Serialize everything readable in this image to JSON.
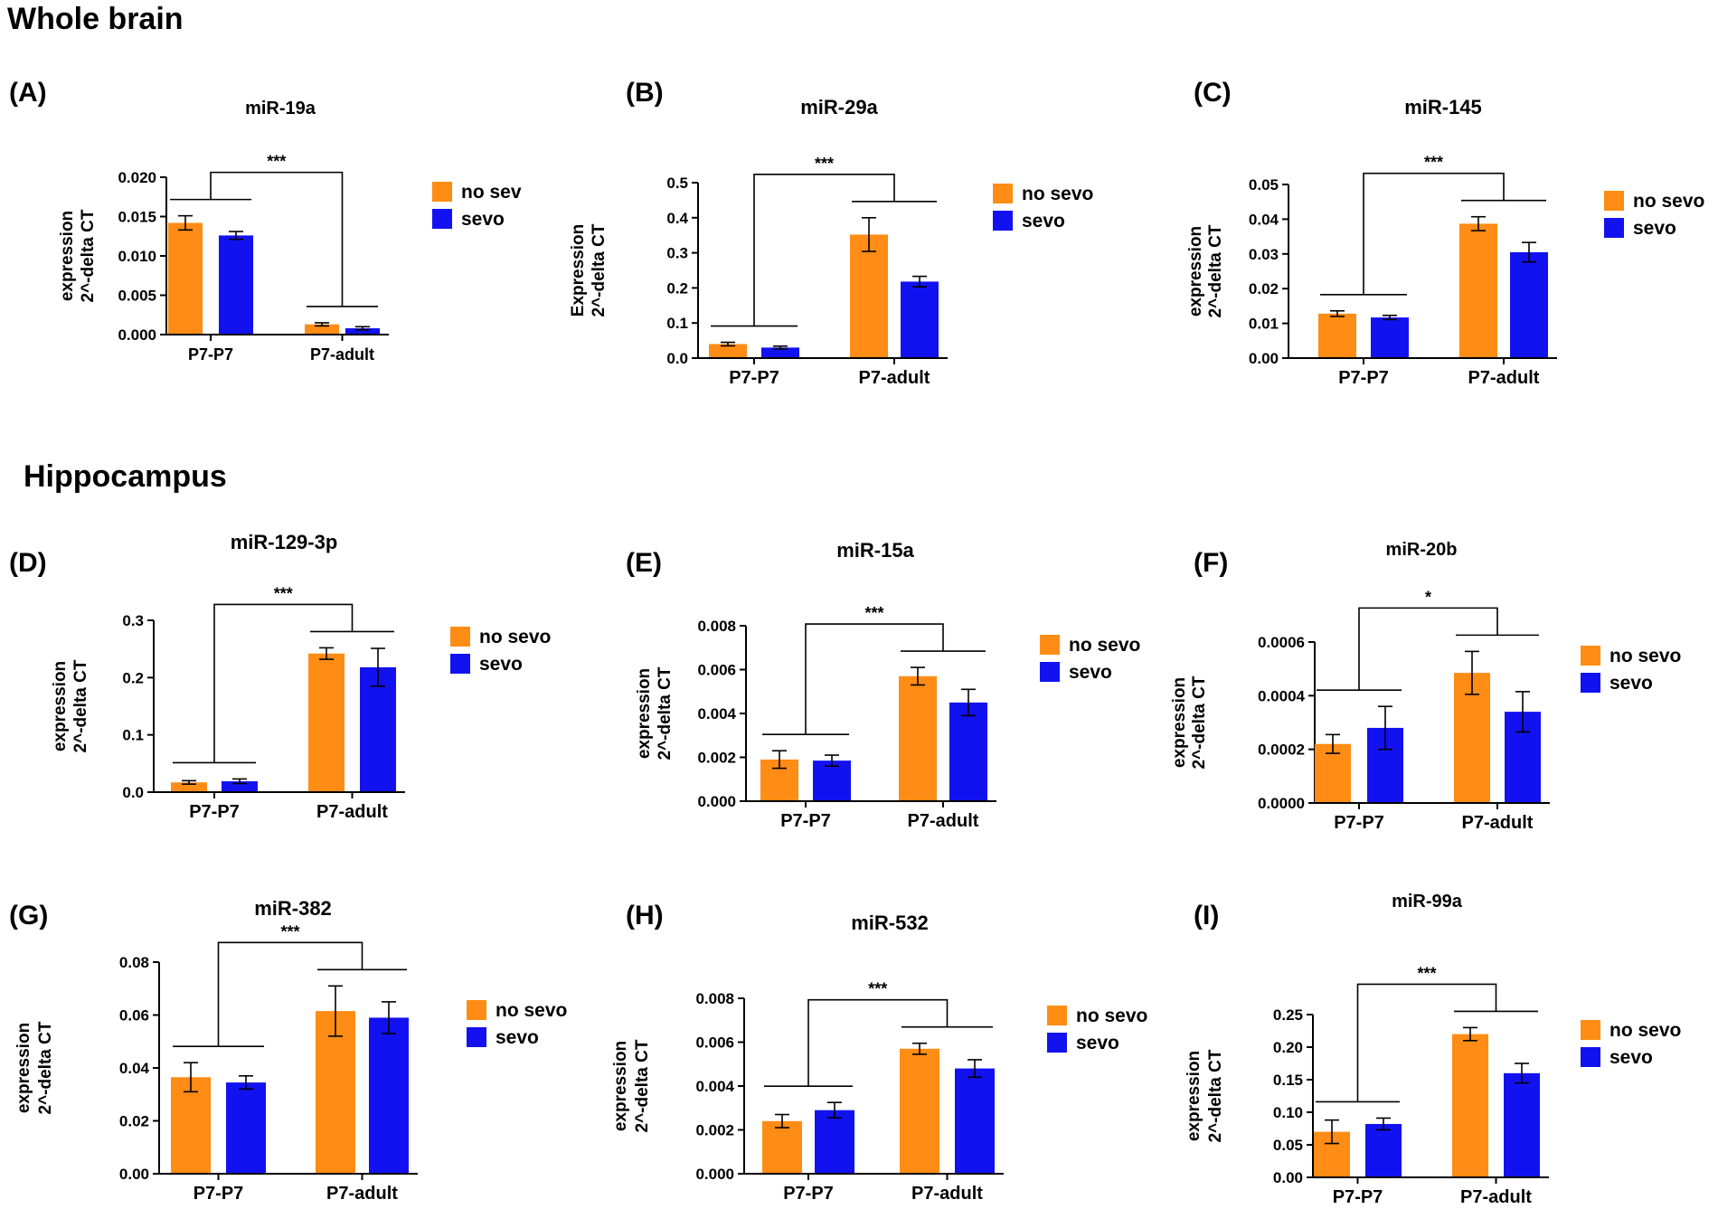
{
  "sections": {
    "whole_brain": "Whole brain",
    "hippocampus": "Hippocampus"
  },
  "colors": {
    "no_sevo": "#FF8C14",
    "sevo": "#1212F0",
    "axis": "#000000"
  },
  "chart_data": [
    {
      "panel": "(A)",
      "type": "bar",
      "title": "miR-19a",
      "ylabel": [
        "expression",
        "2^-delta CT"
      ],
      "categories": [
        "P7-P7",
        "P7-adult"
      ],
      "legend": [
        "no sev",
        "sevo"
      ],
      "series": [
        {
          "name": "no sev",
          "values": [
            0.0142,
            0.0013
          ],
          "errors": [
            0.0009,
            0.0002
          ]
        },
        {
          "name": "sevo",
          "values": [
            0.0126,
            0.0008
          ],
          "errors": [
            0.0005,
            0.0002
          ]
        }
      ],
      "ylim": [
        0,
        0.02
      ],
      "yticks": [
        "0.000",
        "0.005",
        "0.010",
        "0.015",
        "0.020"
      ],
      "significance": "***"
    },
    {
      "panel": "(B)",
      "type": "bar",
      "title": "miR-29a",
      "ylabel": [
        "Expression",
        "2^-delta CT"
      ],
      "categories": [
        "P7-P7",
        "P7-adult"
      ],
      "legend": [
        "no sevo",
        "sevo"
      ],
      "series": [
        {
          "name": "no sevo",
          "values": [
            0.04,
            0.352
          ],
          "errors": [
            0.005,
            0.048
          ]
        },
        {
          "name": "sevo",
          "values": [
            0.03,
            0.218
          ],
          "errors": [
            0.004,
            0.015
          ]
        }
      ],
      "ylim": [
        0,
        0.5
      ],
      "yticks": [
        "0.0",
        "0.1",
        "0.2",
        "0.3",
        "0.4",
        "0.5"
      ],
      "significance": "***"
    },
    {
      "panel": "(C)",
      "type": "bar",
      "title": "miR-145",
      "ylabel": [
        "expression",
        "2^-delta CT"
      ],
      "categories": [
        "P7-P7",
        "P7-adult"
      ],
      "legend": [
        "no sevo",
        "sevo"
      ],
      "series": [
        {
          "name": "no sevo",
          "values": [
            0.0128,
            0.0387
          ],
          "errors": [
            0.0008,
            0.002
          ]
        },
        {
          "name": "sevo",
          "values": [
            0.0117,
            0.0305
          ],
          "errors": [
            0.0006,
            0.0028
          ]
        }
      ],
      "ylim": [
        0,
        0.05
      ],
      "yticks": [
        "0.00",
        "0.01",
        "0.02",
        "0.03",
        "0.04",
        "0.05"
      ],
      "significance": "***"
    },
    {
      "panel": "(D)",
      "type": "bar",
      "title": "miR-129-3p",
      "ylabel": [
        "expression",
        "2^-delta CT"
      ],
      "categories": [
        "P7-P7",
        "P7-adult"
      ],
      "legend": [
        "no sevo",
        "sevo"
      ],
      "series": [
        {
          "name": "no sevo",
          "values": [
            0.017,
            0.242
          ],
          "errors": [
            0.003,
            0.01
          ]
        },
        {
          "name": "sevo",
          "values": [
            0.019,
            0.218
          ],
          "errors": [
            0.004,
            0.033
          ]
        }
      ],
      "ylim": [
        0,
        0.3
      ],
      "yticks": [
        "0.0",
        "0.1",
        "0.2",
        "0.3"
      ],
      "significance": "***"
    },
    {
      "panel": "(E)",
      "type": "bar",
      "title": "miR-15a",
      "ylabel": [
        "expression",
        "2^-delta CT"
      ],
      "categories": [
        "P7-P7",
        "P7-adult"
      ],
      "legend": [
        "no sevo",
        "sevo"
      ],
      "series": [
        {
          "name": "no sevo",
          "values": [
            0.0019,
            0.0057
          ],
          "errors": [
            0.0004,
            0.0004
          ]
        },
        {
          "name": "sevo",
          "values": [
            0.00185,
            0.0045
          ],
          "errors": [
            0.00025,
            0.0006
          ]
        }
      ],
      "ylim": [
        0,
        0.008
      ],
      "yticks": [
        "0.000",
        "0.002",
        "0.004",
        "0.006",
        "0.008"
      ],
      "significance": "***"
    },
    {
      "panel": "(F)",
      "type": "bar",
      "title": "miR-20b",
      "ylabel": [
        "expression",
        "2^-delta CT"
      ],
      "categories": [
        "P7-P7",
        "P7-adult"
      ],
      "legend": [
        "no sevo",
        "sevo"
      ],
      "series": [
        {
          "name": "no sevo",
          "values": [
            0.00022,
            0.000485
          ],
          "errors": [
            3.5e-05,
            8e-05
          ]
        },
        {
          "name": "sevo",
          "values": [
            0.00028,
            0.00034
          ],
          "errors": [
            8e-05,
            7.5e-05
          ]
        }
      ],
      "ylim": [
        0,
        0.0006
      ],
      "yticks": [
        "0.0000",
        "0.0002",
        "0.0004",
        "0.0006"
      ],
      "significance": "*"
    },
    {
      "panel": "(G)",
      "type": "bar",
      "title": "miR-382",
      "ylabel": [
        "expression",
        "2^-delta CT"
      ],
      "categories": [
        "P7-P7",
        "P7-adult"
      ],
      "legend": [
        "no sevo",
        "sevo"
      ],
      "series": [
        {
          "name": "no sevo",
          "values": [
            0.0365,
            0.0615
          ],
          "errors": [
            0.0055,
            0.0095
          ]
        },
        {
          "name": "sevo",
          "values": [
            0.0345,
            0.059
          ],
          "errors": [
            0.0025,
            0.006
          ]
        }
      ],
      "ylim": [
        0,
        0.08
      ],
      "yticks": [
        "0.00",
        "0.02",
        "0.04",
        "0.06",
        "0.08"
      ],
      "significance": "***"
    },
    {
      "panel": "(H)",
      "type": "bar",
      "title": "miR-532",
      "ylabel": [
        "expression",
        "2^-delta CT"
      ],
      "categories": [
        "P7-P7",
        "P7-adult"
      ],
      "legend": [
        "no sevo",
        "sevo"
      ],
      "series": [
        {
          "name": "no sevo",
          "values": [
            0.0024,
            0.0057
          ],
          "errors": [
            0.0003,
            0.00025
          ]
        },
        {
          "name": "sevo",
          "values": [
            0.0029,
            0.0048
          ],
          "errors": [
            0.00035,
            0.0004
          ]
        }
      ],
      "ylim": [
        0,
        0.008
      ],
      "yticks": [
        "0.000",
        "0.002",
        "0.004",
        "0.006",
        "0.008"
      ],
      "significance": "***"
    },
    {
      "panel": "(I)",
      "type": "bar",
      "title": "miR-99a",
      "ylabel": [
        "expression",
        "2^-delta CT"
      ],
      "categories": [
        "P7-P7",
        "P7-adult"
      ],
      "legend": [
        "no sevo",
        "sevo"
      ],
      "series": [
        {
          "name": "no sevo",
          "values": [
            0.07,
            0.22
          ],
          "errors": [
            0.018,
            0.01
          ]
        },
        {
          "name": "sevo",
          "values": [
            0.082,
            0.16
          ],
          "errors": [
            0.009,
            0.015
          ]
        }
      ],
      "ylim": [
        0,
        0.25
      ],
      "yticks": [
        "0.00",
        "0.05",
        "0.10",
        "0.15",
        "0.20",
        "0.25"
      ],
      "significance": "***"
    }
  ]
}
